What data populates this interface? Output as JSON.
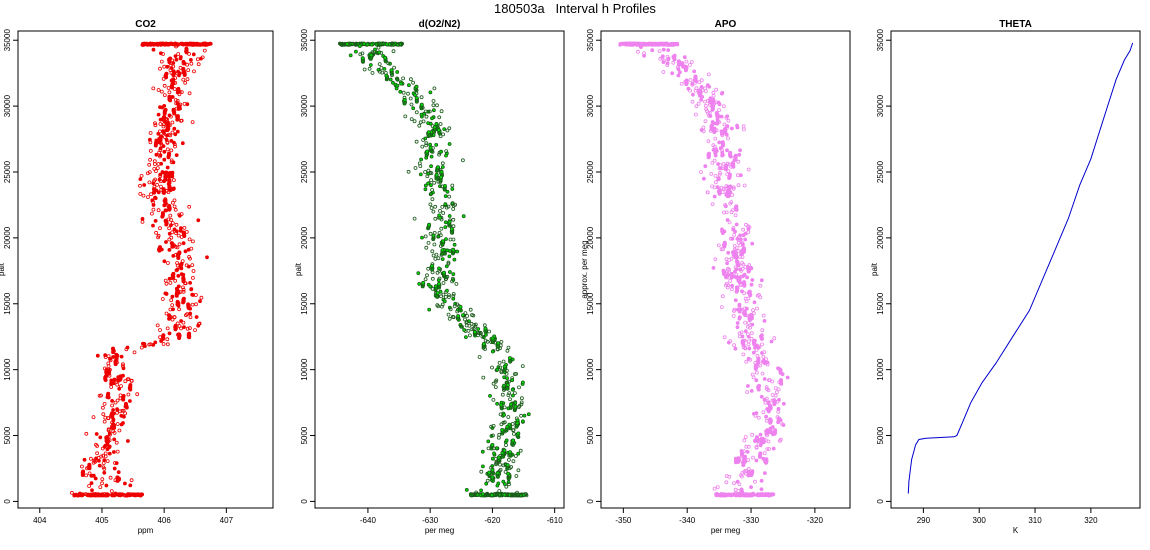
{
  "figure": {
    "title": "180503a   Interval h Profiles"
  },
  "chart_data": [
    {
      "type": "scatter",
      "title": "CO2",
      "xlabel": "ppm",
      "ylabel": "palt",
      "xlim": [
        403.65,
        407.75
      ],
      "ylim": [
        -500,
        35700
      ],
      "xticks": [
        404,
        405,
        406,
        407
      ],
      "yticks": [
        0,
        5000,
        10000,
        15000,
        20000,
        25000,
        30000,
        35000
      ],
      "color": "#ee0000",
      "marker": "open-circle",
      "series": [
        {
          "profile": [
            {
              "y": 500,
              "x": 405.1,
              "spread": 0.55,
              "density": "high"
            },
            {
              "y": 3000,
              "x": 404.95,
              "spread": 0.3
            },
            {
              "y": 6000,
              "x": 405.2,
              "spread": 0.3
            },
            {
              "y": 9000,
              "x": 405.25,
              "spread": 0.3
            },
            {
              "y": 11000,
              "x": 405.15,
              "spread": 0.3
            },
            {
              "y": 12500,
              "x": 406.2,
              "spread": 0.3
            },
            {
              "y": 15000,
              "x": 406.3,
              "spread": 0.3
            },
            {
              "y": 18000,
              "x": 406.3,
              "spread": 0.35
            },
            {
              "y": 21000,
              "x": 406.05,
              "spread": 0.35
            },
            {
              "y": 24000,
              "x": 405.95,
              "spread": 0.3
            },
            {
              "y": 27000,
              "x": 406.0,
              "spread": 0.3
            },
            {
              "y": 30000,
              "x": 406.15,
              "spread": 0.3
            },
            {
              "y": 33000,
              "x": 406.2,
              "spread": 0.3
            },
            {
              "y": 34700,
              "x": 406.2,
              "spread": 0.55,
              "density": "high"
            }
          ]
        }
      ]
    },
    {
      "type": "scatter",
      "title": "d(O2/N2)",
      "xlabel": "per meg",
      "ylabel": "palt",
      "xlim": [
        -648.5,
        -608.5
      ],
      "ylim": [
        -500,
        35700
      ],
      "xticks": [
        -640,
        -630,
        -620,
        -610
      ],
      "yticks": [
        0,
        5000,
        10000,
        15000,
        20000,
        25000,
        30000,
        35000
      ],
      "color": "#00dd00",
      "marker": "dark-ringed-circle",
      "series": [
        {
          "profile": [
            {
              "y": 500,
              "x": -619.0,
              "spread": 4.5,
              "density": "high"
            },
            {
              "y": 3000,
              "x": -619.0,
              "spread": 3.0
            },
            {
              "y": 6000,
              "x": -617.0,
              "spread": 3.0
            },
            {
              "y": 9000,
              "x": -617.5,
              "spread": 3.0
            },
            {
              "y": 11000,
              "x": -619.0,
              "spread": 3.0
            },
            {
              "y": 13500,
              "x": -623.5,
              "spread": 2.5
            },
            {
              "y": 16000,
              "x": -629.0,
              "spread": 3.0
            },
            {
              "y": 19000,
              "x": -627.5,
              "spread": 3.0
            },
            {
              "y": 22000,
              "x": -628.0,
              "spread": 3.0
            },
            {
              "y": 25000,
              "x": -629.5,
              "spread": 3.0
            },
            {
              "y": 28000,
              "x": -629.0,
              "spread": 3.0
            },
            {
              "y": 31000,
              "x": -633.0,
              "spread": 3.0
            },
            {
              "y": 33500,
              "x": -639.0,
              "spread": 3.0
            },
            {
              "y": 34700,
              "x": -639.5,
              "spread": 5.0,
              "density": "high"
            }
          ]
        }
      ]
    },
    {
      "type": "scatter",
      "title": "APO",
      "xlabel": "per meg",
      "ylabel": "approx. per meg",
      "xlim": [
        -353.5,
        -314.5
      ],
      "ylim": [
        -500,
        35700
      ],
      "xticks": [
        -350,
        -340,
        -330,
        -320
      ],
      "yticks": [
        0,
        5000,
        10000,
        15000,
        20000,
        25000,
        30000,
        35000
      ],
      "color": "#ee82ee",
      "marker": "open-circle",
      "series": [
        {
          "profile": [
            {
              "y": 500,
              "x": -331.0,
              "spread": 4.5,
              "density": "high"
            },
            {
              "y": 3000,
              "x": -330.0,
              "spread": 3.0
            },
            {
              "y": 6000,
              "x": -327.0,
              "spread": 3.0
            },
            {
              "y": 9000,
              "x": -327.5,
              "spread": 3.0
            },
            {
              "y": 12000,
              "x": -330.0,
              "spread": 3.0
            },
            {
              "y": 15000,
              "x": -331.0,
              "spread": 3.0
            },
            {
              "y": 18000,
              "x": -332.0,
              "spread": 3.0
            },
            {
              "y": 21000,
              "x": -333.0,
              "spread": 3.0
            },
            {
              "y": 24000,
              "x": -334.0,
              "spread": 3.0
            },
            {
              "y": 27000,
              "x": -334.5,
              "spread": 3.0
            },
            {
              "y": 30000,
              "x": -336.0,
              "spread": 3.0
            },
            {
              "y": 32500,
              "x": -340.0,
              "spread": 3.0
            },
            {
              "y": 34700,
              "x": -346.0,
              "spread": 4.5,
              "density": "high"
            }
          ]
        }
      ]
    },
    {
      "type": "line",
      "title": "THETA",
      "xlabel": "K",
      "ylabel": "palt",
      "xlim": [
        284.2,
        328.8
      ],
      "ylim": [
        -500,
        35700
      ],
      "xticks": [
        290,
        300,
        310,
        320
      ],
      "yticks": [
        0,
        5000,
        10000,
        15000,
        20000,
        25000,
        30000,
        35000
      ],
      "color": "#0000cc",
      "x": [
        287.3,
        287.4,
        287.7,
        287.9,
        288.3,
        288.6,
        289.2,
        290.5,
        293.0,
        295.5,
        296.0,
        297.0,
        298.5,
        300.5,
        303.0,
        306.0,
        309.0,
        311.5,
        313.5,
        316.0,
        318.0,
        320.0,
        321.5,
        323.0,
        324.5,
        326.0,
        327.0,
        327.5
      ],
      "y": [
        600,
        1500,
        2500,
        3200,
        3800,
        4300,
        4700,
        4800,
        4850,
        4900,
        5000,
        6000,
        7500,
        9000,
        10500,
        12500,
        14500,
        17000,
        19000,
        21500,
        24000,
        26000,
        28000,
        30000,
        32000,
        33500,
        34200,
        34800
      ]
    }
  ]
}
